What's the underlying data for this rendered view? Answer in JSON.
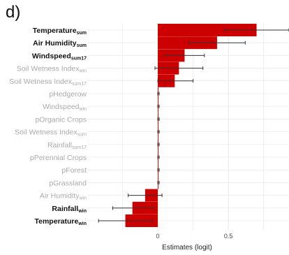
{
  "panel_label": "d)",
  "chart_data": {
    "type": "bar",
    "orientation": "horizontal",
    "error_bars": true,
    "xlabel": "Estimates (logit)",
    "xlim": [
      -0.5,
      0.93
    ],
    "x_ticks": [
      0,
      0.5
    ],
    "x_tick_labels": [
      "0",
      "0.5"
    ],
    "grid": true,
    "colors": {
      "bar": "#cc0000",
      "bold_label": "#111111",
      "faded_label": "#aaaaaa",
      "grid": "#e6e6e6",
      "zero_line": "#f2f2cc",
      "error_bar": "#333333"
    },
    "rows": [
      {
        "base": "Temperature",
        "sub": "sum",
        "bold": true,
        "value": 0.7,
        "ci": [
          0.47,
          0.93
        ]
      },
      {
        "base": "Air Humidity",
        "sub": "sum",
        "bold": true,
        "value": 0.42,
        "ci": [
          0.22,
          0.62
        ]
      },
      {
        "base": "Windspeed",
        "sub": "sum17",
        "bold": true,
        "value": 0.19,
        "ci": [
          0.05,
          0.33
        ]
      },
      {
        "base": "Soil Wetness Index",
        "sub": "win",
        "bold": false,
        "value": 0.15,
        "ci": [
          -0.02,
          0.32
        ]
      },
      {
        "base": "Soil Wetness Index",
        "sub": "sum17",
        "bold": false,
        "value": 0.12,
        "ci": [
          0.0,
          0.25
        ]
      },
      {
        "base": "pHedgerow",
        "sub": "",
        "bold": false,
        "value": 0.005,
        "ci": [
          0.0,
          0.01
        ]
      },
      {
        "base": "Windspeed",
        "sub": "win",
        "bold": false,
        "value": 0.004,
        "ci": [
          0.0,
          0.01
        ]
      },
      {
        "base": "pOrganic Crops",
        "sub": "",
        "bold": false,
        "value": 0.004,
        "ci": [
          0.0,
          0.01
        ]
      },
      {
        "base": "Soil Wetness Index",
        "sub": "sum",
        "bold": false,
        "value": 0.004,
        "ci": [
          0.0,
          0.01
        ]
      },
      {
        "base": "Rainfall",
        "sub": "sum17",
        "bold": false,
        "value": 0.004,
        "ci": [
          0.0,
          0.01
        ]
      },
      {
        "base": "pPerennial Crops",
        "sub": "",
        "bold": false,
        "value": 0.004,
        "ci": [
          0.0,
          0.01
        ]
      },
      {
        "base": "pForest",
        "sub": "",
        "bold": false,
        "value": 0.004,
        "ci": [
          0.0,
          0.01
        ]
      },
      {
        "base": "pGrassland",
        "sub": "",
        "bold": false,
        "value": 0.004,
        "ci": [
          0.0,
          0.01
        ]
      },
      {
        "base": "Air Humidity",
        "sub": "win",
        "bold": false,
        "value": -0.09,
        "ci": [
          -0.21,
          0.03
        ]
      },
      {
        "base": "Rainfall",
        "sub": "win",
        "bold": true,
        "value": -0.18,
        "ci": [
          -0.32,
          -0.03
        ]
      },
      {
        "base": "Temperature",
        "sub": "win",
        "bold": true,
        "value": -0.23,
        "ci": [
          -0.42,
          -0.04
        ]
      }
    ]
  }
}
